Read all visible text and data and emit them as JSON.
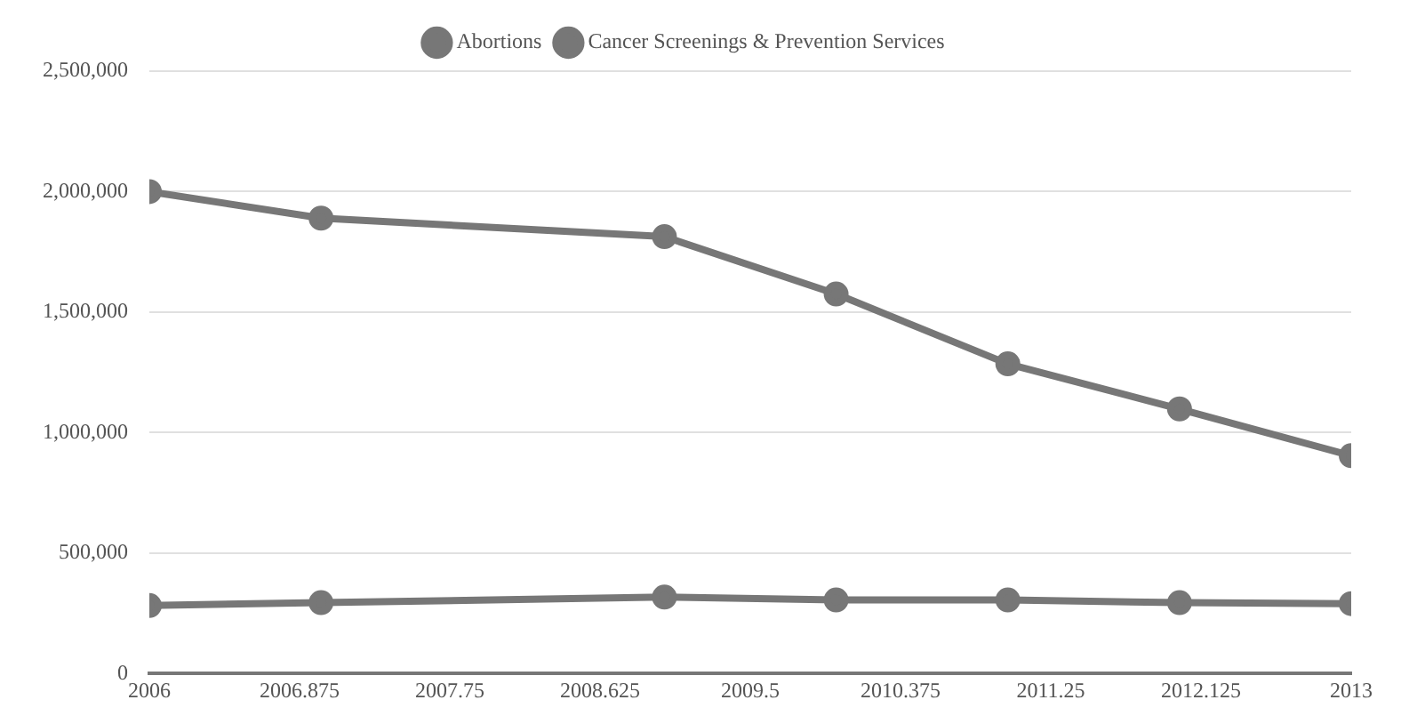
{
  "chart_data": {
    "type": "line",
    "x": [
      2006,
      2007,
      2009,
      2010,
      2011,
      2012,
      2013
    ],
    "series": [
      {
        "name": "Abortions",
        "color": "#777777",
        "values": [
          282000,
          294000,
          317000,
          305000,
          305000,
          294000,
          290000
        ]
      },
      {
        "name": "Cancer Screenings & Prevention Services",
        "color": "#777777",
        "values": [
          2000000,
          1890000,
          1813000,
          1575000,
          1285000,
          1098000,
          904000
        ]
      }
    ],
    "xlim": [
      2006,
      2013
    ],
    "xticks": [
      2006,
      2006.875,
      2007.75,
      2008.625,
      2009.5,
      2010.375,
      2011.25,
      2012.125,
      2013
    ],
    "ylim": [
      0,
      2500000
    ],
    "yticks": [
      {
        "value": 0,
        "label": "0"
      },
      {
        "value": 500000,
        "label": "500,000"
      },
      {
        "value": 1000000,
        "label": "1,000,000"
      },
      {
        "value": 1500000,
        "label": "1,500,000"
      },
      {
        "value": 2000000,
        "label": "2,000,000"
      },
      {
        "value": 2500000,
        "label": "2,500,000"
      }
    ],
    "grid": "y",
    "legend": "top",
    "marker": "circle",
    "line_style": "solid"
  }
}
